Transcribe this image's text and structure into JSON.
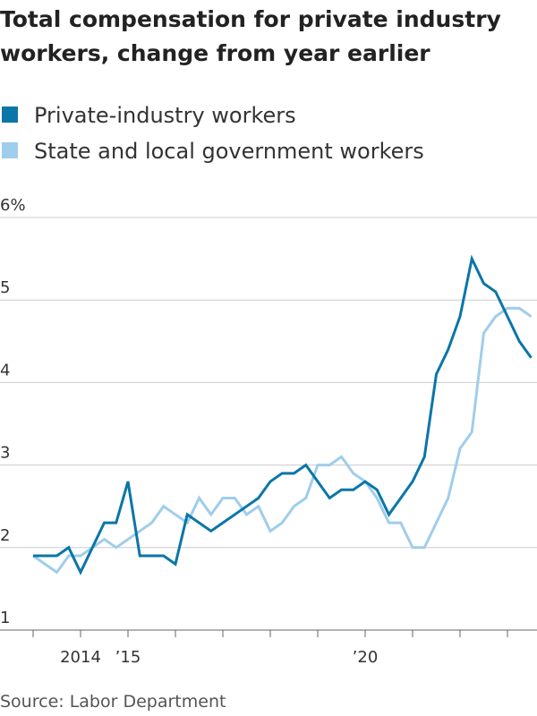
{
  "chart_data": {
    "type": "line",
    "title_lines": [
      "Total compensation for private industry",
      "workers, change from year earlier"
    ],
    "source": "Source: Labor Department",
    "x": [
      2013,
      2013.25,
      2013.5,
      2013.75,
      2014,
      2014.25,
      2014.5,
      2014.75,
      2015,
      2015.25,
      2015.5,
      2015.75,
      2016,
      2016.25,
      2016.5,
      2016.75,
      2017,
      2017.25,
      2017.5,
      2017.75,
      2018,
      2018.25,
      2018.5,
      2018.75,
      2019,
      2019.25,
      2019.5,
      2019.75,
      2020,
      2020.25,
      2020.5,
      2020.75,
      2021,
      2021.25,
      2021.5,
      2021.75,
      2022,
      2022.25,
      2022.5,
      2022.75,
      2023,
      2023.25,
      2023.5
    ],
    "series": [
      {
        "name": "Private-industry workers",
        "color": "#0a76a8",
        "values": [
          1.9,
          1.9,
          1.9,
          2.0,
          1.7,
          2.0,
          2.3,
          2.3,
          2.8,
          1.9,
          1.9,
          1.9,
          1.8,
          2.4,
          2.3,
          2.2,
          2.3,
          2.4,
          2.5,
          2.6,
          2.8,
          2.9,
          2.9,
          3.0,
          2.8,
          2.6,
          2.7,
          2.7,
          2.8,
          2.7,
          2.4,
          2.6,
          2.8,
          3.1,
          4.1,
          4.4,
          4.8,
          5.5,
          5.2,
          5.1,
          4.8,
          4.5,
          4.3
        ]
      },
      {
        "name": "State and local government workers",
        "color": "#9fcdec",
        "values": [
          1.9,
          1.8,
          1.7,
          1.9,
          1.9,
          2.0,
          2.1,
          2.0,
          2.1,
          2.2,
          2.3,
          2.5,
          2.4,
          2.3,
          2.6,
          2.4,
          2.6,
          2.6,
          2.4,
          2.5,
          2.2,
          2.3,
          2.5,
          2.6,
          3.0,
          3.0,
          3.1,
          2.9,
          2.8,
          2.6,
          2.3,
          2.3,
          2.0,
          2.0,
          2.3,
          2.6,
          3.2,
          3.4,
          4.6,
          4.8,
          4.9,
          4.9,
          4.8
        ]
      }
    ],
    "xlim": [
      2012.5,
      2023.7
    ],
    "xticks": [
      {
        "value": 2014,
        "label": "2014"
      },
      {
        "value": 2015,
        "label": "’15"
      },
      {
        "value": 2020,
        "label": "’20"
      }
    ],
    "xtick_marks": [
      2013,
      2014,
      2015,
      2016,
      2017,
      2018,
      2019,
      2020,
      2021,
      2022,
      2023
    ],
    "ylim": [
      1,
      6
    ],
    "yticks": [
      {
        "value": 6,
        "label": "6%"
      },
      5,
      4,
      3,
      2,
      1
    ],
    "grid": true
  }
}
